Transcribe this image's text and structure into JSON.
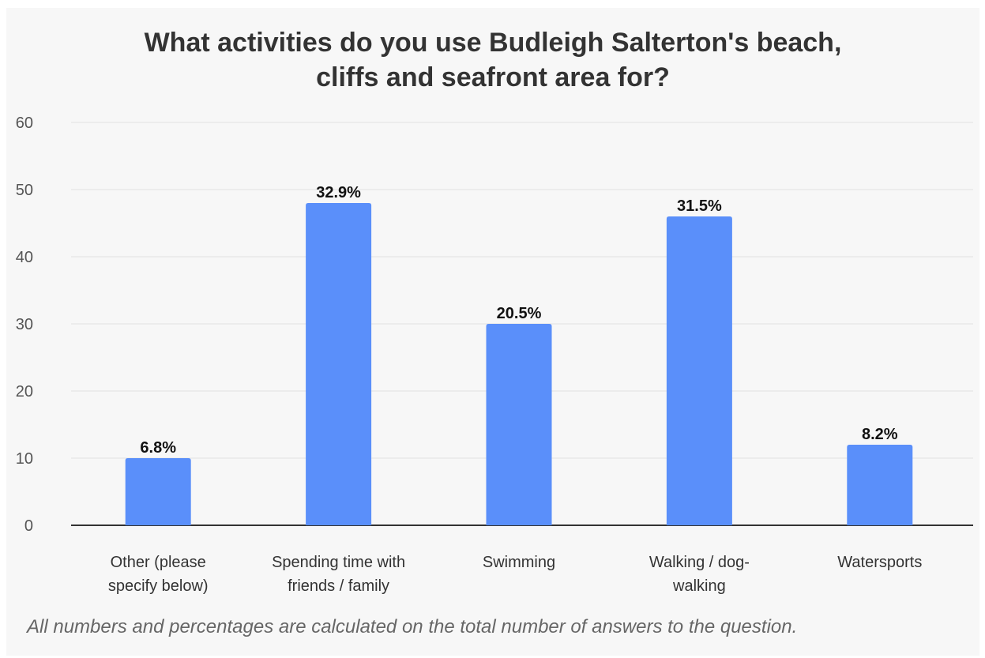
{
  "chart_data": {
    "type": "bar",
    "title_lines": [
      "What activities do you use Budleigh Salterton's beach,",
      "cliffs and seafront area for?"
    ],
    "categories": [
      [
        "Other (please",
        "specify below)"
      ],
      [
        "Spending time with",
        "friends / family"
      ],
      [
        "Swimming"
      ],
      [
        "Walking / dog-",
        "walking"
      ],
      [
        "Watersports"
      ]
    ],
    "values": [
      10,
      48,
      30,
      46,
      12
    ],
    "data_labels": [
      "6.8%",
      "32.9%",
      "20.5%",
      "31.5%",
      "8.2%"
    ],
    "ylim": [
      0,
      60
    ],
    "yticks": [
      0,
      10,
      20,
      30,
      40,
      50,
      60
    ],
    "grid": true,
    "bar_color": "#5a8ffa"
  },
  "footnote": "All numbers and percentages are calculated on the total number of answers to the question."
}
